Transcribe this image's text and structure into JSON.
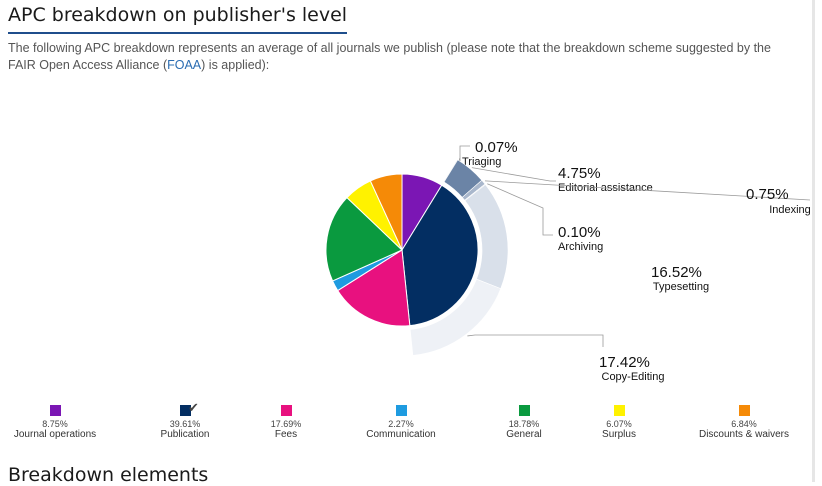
{
  "page": {
    "title": "APC breakdown on publisher's level",
    "intro_before": "The following APC breakdown represents an average of all journals we publish (please note that the breakdown scheme suggested by the FAIR Open Access Alliance (",
    "intro_link": "FOAA",
    "intro_after": ") is applied):",
    "section_heading": "Breakdown elements"
  },
  "colors": {
    "journal_operations": "#7b16b4",
    "publication": "#032e62",
    "fees": "#e8117f",
    "communication": "#1e9be0",
    "general": "#0a9a3f",
    "surplus": "#fff200",
    "discounts": "#f58a07"
  },
  "chart_data": {
    "type": "pie",
    "title": "",
    "main_slices": [
      {
        "label": "Journal operations",
        "value": 8.75,
        "pct": "8.75%",
        "color": "#7b16b4"
      },
      {
        "label": "Publication",
        "value": 39.61,
        "pct": "39.61%",
        "color": "#032e62",
        "selected": true
      },
      {
        "label": "Fees",
        "value": 17.69,
        "pct": "17.69%",
        "color": "#e8117f"
      },
      {
        "label": "Communication",
        "value": 2.27,
        "pct": "2.27%",
        "color": "#1e9be0"
      },
      {
        "label": "General",
        "value": 18.78,
        "pct": "18.78%",
        "color": "#0a9a3f"
      },
      {
        "label": "Surplus",
        "value": 6.07,
        "pct": "6.07%",
        "color": "#fff200"
      },
      {
        "label": "Discounts & waivers",
        "value": 6.84,
        "pct": "6.84%",
        "color": "#f58a07"
      }
    ],
    "publication_breakdown": [
      {
        "label": "Triaging",
        "value": 0.07,
        "pct": "0.07%",
        "color": "#1f3b63"
      },
      {
        "label": "Editorial assistance",
        "value": 4.75,
        "pct": "4.75%",
        "color": "#6b84a6"
      },
      {
        "label": "Indexing",
        "value": 0.75,
        "pct": "0.75%",
        "color": "#a9b7cc"
      },
      {
        "label": "Archiving",
        "value": 0.1,
        "pct": "0.10%",
        "color": "#bfc9d8"
      },
      {
        "label": "Typesetting",
        "value": 16.52,
        "pct": "16.52%",
        "color": "#d9e0ea"
      },
      {
        "label": "Copy-Editing",
        "value": 17.42,
        "pct": "17.42%",
        "color": "#eef1f6"
      }
    ]
  }
}
